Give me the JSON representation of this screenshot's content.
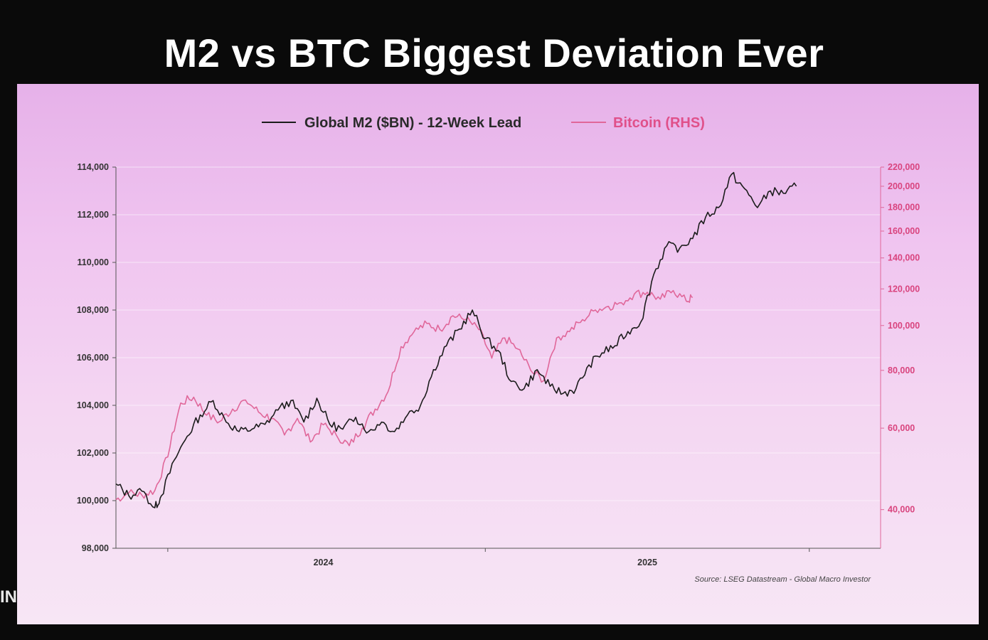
{
  "slide": {
    "title": "M2 vs BTC Biggest Deviation Ever",
    "edge_text": "IN"
  },
  "chart_data": {
    "type": "line",
    "title": "M2 vs BTC Biggest Deviation Ever",
    "legend": [
      "Global M2 ($BN) - 12-Week Lead",
      "Bitcoin (RHS)"
    ],
    "legend_position": "top-center",
    "source": "Source: LSEG Datastream - Global Macro Investor",
    "x_range": [
      2023.36,
      2025.72
    ],
    "x_ticks": [
      2024,
      2025
    ],
    "x_tick_labels": [
      "2024",
      "2025"
    ],
    "y_left": {
      "range": [
        98000,
        114000
      ],
      "ticks": [
        98000,
        100000,
        102000,
        104000,
        106000,
        108000,
        110000,
        112000,
        114000
      ],
      "tick_labels": [
        "98,000",
        "100,000",
        "102,000",
        "104,000",
        "106,000",
        "108,000",
        "110,000",
        "112,000",
        "114,000"
      ]
    },
    "y_right": {
      "scale": "log",
      "range": [
        33000,
        220000
      ],
      "ticks": [
        40000,
        60000,
        80000,
        100000,
        120000,
        140000,
        160000,
        180000,
        200000,
        220000
      ],
      "tick_labels": [
        "40,000",
        "60,000",
        "80,000",
        "100,000",
        "120,000",
        "140,000",
        "160,000",
        "180,000",
        "200,000",
        "220,000"
      ]
    },
    "colors": {
      "m2": "#1c1c1c",
      "btc": "#e0679a",
      "axis_right": "#e0679a",
      "axis_left": "#555555",
      "grid": "#ffffff"
    },
    "series": [
      {
        "name": "Global M2 ($BN) - 12-Week Lead",
        "axis": "left",
        "x": [
          2023.36,
          2023.4,
          2023.44,
          2023.48,
          2023.5,
          2023.54,
          2023.58,
          2023.62,
          2023.66,
          2023.7,
          2023.74,
          2023.78,
          2023.82,
          2023.86,
          2023.9,
          2023.94,
          2023.98,
          2024.02,
          2024.06,
          2024.1,
          2024.14,
          2024.18,
          2024.22,
          2024.26,
          2024.3,
          2024.34,
          2024.38,
          2024.42,
          2024.46,
          2024.5,
          2024.54,
          2024.58,
          2024.62,
          2024.66,
          2024.7,
          2024.74,
          2024.78,
          2024.82,
          2024.86,
          2024.9,
          2024.94,
          2024.98,
          2025.02,
          2025.06,
          2025.1,
          2025.14,
          2025.18,
          2025.22,
          2025.26,
          2025.3,
          2025.34,
          2025.38,
          2025.42,
          2025.46
        ],
        "values": [
          100700,
          100200,
          100400,
          99700,
          100200,
          101700,
          102700,
          103600,
          104200,
          103300,
          102900,
          103000,
          103200,
          103800,
          104200,
          103300,
          104300,
          103200,
          103000,
          103500,
          102900,
          103300,
          102900,
          103600,
          104000,
          105500,
          106500,
          107200,
          108000,
          106800,
          106300,
          105000,
          104700,
          105500,
          104800,
          104500,
          104700,
          105700,
          106200,
          106500,
          107100,
          107500,
          109500,
          110700,
          110600,
          111000,
          111900,
          112300,
          113700,
          113100,
          112300,
          113000,
          112900,
          113200
        ]
      },
      {
        "name": "Bitcoin (RHS)",
        "axis": "right",
        "x": [
          2023.36,
          2023.4,
          2023.44,
          2023.48,
          2023.52,
          2023.56,
          2023.6,
          2023.64,
          2023.68,
          2023.72,
          2023.76,
          2023.8,
          2023.84,
          2023.88,
          2023.92,
          2023.96,
          2024.0,
          2024.04,
          2024.08,
          2024.12,
          2024.16,
          2024.2,
          2024.24,
          2024.28,
          2024.32,
          2024.36,
          2024.4,
          2024.44,
          2024.48,
          2024.52,
          2024.56,
          2024.6,
          2024.64,
          2024.68,
          2024.72,
          2024.76,
          2024.8,
          2024.84,
          2024.88,
          2024.92,
          2024.96,
          2025.0,
          2025.04,
          2025.08,
          2025.12,
          2025.14
        ],
        "values": [
          42000,
          43500,
          43000,
          44000,
          52000,
          68000,
          70000,
          64000,
          62000,
          66000,
          69000,
          65000,
          63000,
          58000,
          63000,
          56000,
          61000,
          58000,
          55000,
          60000,
          66000,
          72000,
          90000,
          97000,
          101000,
          98000,
          105000,
          103000,
          98000,
          85000,
          94000,
          89000,
          80000,
          76000,
          94000,
          97000,
          103000,
          108000,
          110000,
          112000,
          117000,
          118000,
          114000,
          119000,
          113000,
          115000
        ]
      }
    ]
  }
}
